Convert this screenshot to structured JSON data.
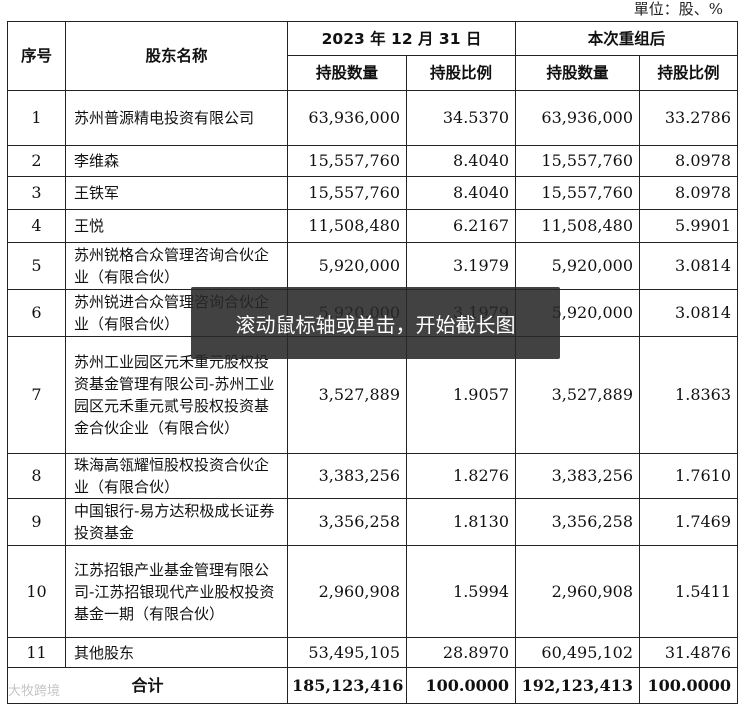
{
  "unit": "單位：股、%",
  "headers": {
    "seq": "序号",
    "name": "股东名称",
    "group1": "2023 年 12 月 31 日",
    "group2": "本次重组后",
    "shares": "持股数量",
    "ratio": "持股比例"
  },
  "rows": [
    {
      "seq": "1",
      "name": "苏州普源精电投资有限公司",
      "shares1": "63,936,000",
      "ratio1": "34.5370",
      "shares2": "63,936,000",
      "ratio2": "33.2786"
    },
    {
      "seq": "2",
      "name": "李维森",
      "shares1": "15,557,760",
      "ratio1": "8.4040",
      "shares2": "15,557,760",
      "ratio2": "8.0978"
    },
    {
      "seq": "3",
      "name": "王铁军",
      "shares1": "15,557,760",
      "ratio1": "8.4040",
      "shares2": "15,557,760",
      "ratio2": "8.0978"
    },
    {
      "seq": "4",
      "name": "王悦",
      "shares1": "11,508,480",
      "ratio1": "6.2167",
      "shares2": "11,508,480",
      "ratio2": "5.9901"
    },
    {
      "seq": "5",
      "name": "苏州锐格合众管理咨询合伙企业（有限合伙）",
      "shares1": "5,920,000",
      "ratio1": "3.1979",
      "shares2": "5,920,000",
      "ratio2": "3.0814"
    },
    {
      "seq": "6",
      "name": "苏州锐进合众管理咨询合伙企业（有限合伙）",
      "shares1": "5,920,000",
      "ratio1": "3.1979",
      "shares2": "5,920,000",
      "ratio2": "3.0814"
    },
    {
      "seq": "7",
      "name": "苏州工业园区元禾重元股权投资基金管理有限公司-苏州工业园区元禾重元贰号股权投资基金合伙企业（有限合伙）",
      "shares1": "3,527,889",
      "ratio1": "1.9057",
      "shares2": "3,527,889",
      "ratio2": "1.8363"
    },
    {
      "seq": "8",
      "name": "珠海高瓴耀恒股权投资合伙企业（有限合伙）",
      "shares1": "3,383,256",
      "ratio1": "1.8276",
      "shares2": "3,383,256",
      "ratio2": "1.7610"
    },
    {
      "seq": "9",
      "name": "中国银行-易方达积极成长证券投资基金",
      "shares1": "3,356,258",
      "ratio1": "1.8130",
      "shares2": "3,356,258",
      "ratio2": "1.7469"
    },
    {
      "seq": "10",
      "name": "江苏招银产业基金管理有限公司-江苏招银现代产业股权投资基金一期（有限合伙）",
      "shares1": "2,960,908",
      "ratio1": "1.5994",
      "shares2": "2,960,908",
      "ratio2": "1.5411"
    },
    {
      "seq": "11",
      "name": "其他股东",
      "shares1": "53,495,105",
      "ratio1": "28.8970",
      "shares2": "60,495,102",
      "ratio2": "31.4876"
    }
  ],
  "total": {
    "label": "合计",
    "shares1": "185,123,416",
    "ratio1": "100.0000",
    "shares2": "192,123,413",
    "ratio2": "100.0000"
  },
  "overlay_text": "滚动鼠标轴或单击，开始截长图",
  "watermark": "大牧跨境"
}
